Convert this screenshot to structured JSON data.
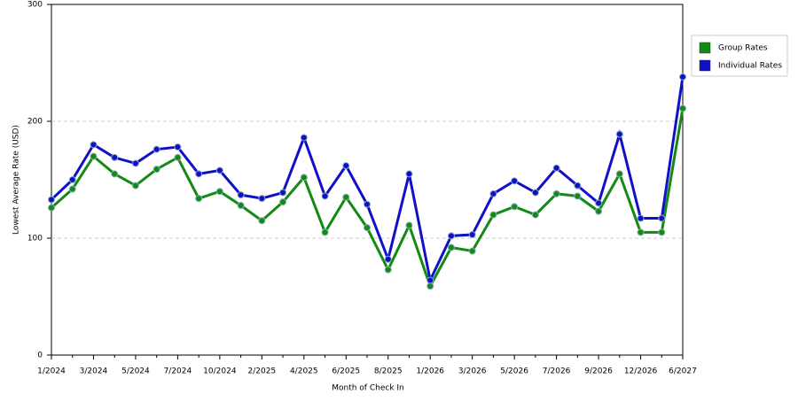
{
  "chart_data": {
    "type": "line",
    "x_label": "Month of Check In",
    "y_label": "Lowest Average Rate (USD)",
    "categories": [
      "1/2024",
      null,
      "3/2024",
      null,
      "5/2024",
      null,
      "7/2024",
      null,
      "10/2024",
      null,
      "2/2025",
      null,
      "4/2025",
      null,
      "6/2025",
      null,
      "8/2025",
      null,
      "1/2026",
      null,
      "3/2026",
      null,
      "5/2026",
      null,
      "7/2026",
      null,
      "9/2026",
      null,
      "12/2026",
      null,
      "6/2027"
    ],
    "series": [
      {
        "name": "Group Rates",
        "color": "#138a13",
        "values": [
          126,
          142,
          170,
          155,
          145,
          159,
          169,
          134,
          140,
          128,
          115,
          131,
          152,
          105,
          135,
          109,
          73,
          111,
          59,
          92,
          89,
          120,
          127,
          120,
          138,
          136,
          123,
          155,
          105,
          105,
          211
        ]
      },
      {
        "name": "Individual Rates",
        "color": "#1010c8",
        "values": [
          133,
          150,
          180,
          169,
          164,
          176,
          178,
          155,
          158,
          137,
          134,
          139,
          186,
          136,
          162,
          129,
          82,
          155,
          64,
          102,
          103,
          138,
          149,
          139,
          160,
          145,
          130,
          189,
          117,
          117,
          238
        ]
      }
    ],
    "ylim": [
      0,
      300
    ],
    "yticks": [
      0,
      100,
      200,
      300
    ],
    "grid": true,
    "legend": "right"
  }
}
